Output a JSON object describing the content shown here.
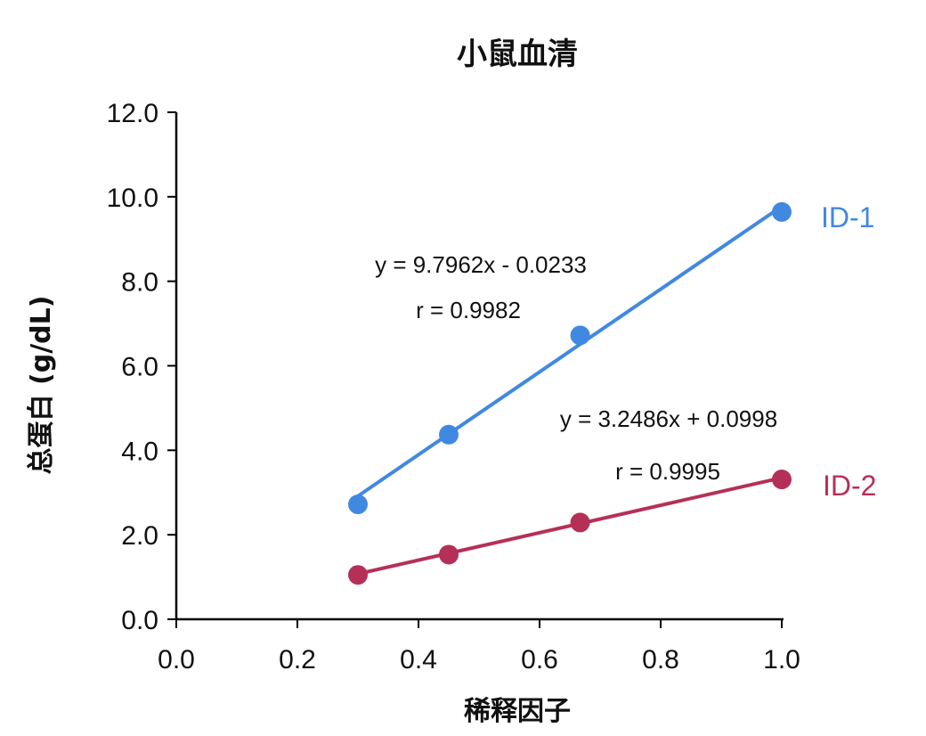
{
  "chart_data": {
    "type": "scatter",
    "title": "小鼠血清",
    "xlabel": "稀释因子",
    "ylabel": "总蛋白 (g/dL)",
    "xlim": [
      0,
      1.0
    ],
    "ylim": [
      0,
      12.0
    ],
    "x_ticks": [
      "0.0",
      "0.2",
      "0.4",
      "0.6",
      "0.8",
      "1.0"
    ],
    "y_ticks": [
      "0.0",
      "2.0",
      "4.0",
      "6.0",
      "8.0",
      "10.0",
      "12.0"
    ],
    "grid": false,
    "series": [
      {
        "name": "ID-1",
        "color": "#4189E0",
        "x": [
          0.3,
          0.45,
          0.667,
          1.0
        ],
        "y": [
          2.72,
          4.37,
          6.72,
          9.64
        ],
        "trendline": {
          "slope": 9.7962,
          "intercept": -0.0233
        },
        "equation": "y = 9.7962x - 0.0233",
        "r": "r = 0.9982"
      },
      {
        "name": "ID-2",
        "color": "#B53058",
        "x": [
          0.3,
          0.45,
          0.667,
          1.0
        ],
        "y": [
          1.05,
          1.53,
          2.29,
          3.31
        ],
        "trendline": {
          "slope": 3.2486,
          "intercept": 0.0998
        },
        "equation": "y = 3.2486x + 0.0998",
        "r": "r = 0.9995"
      }
    ]
  }
}
